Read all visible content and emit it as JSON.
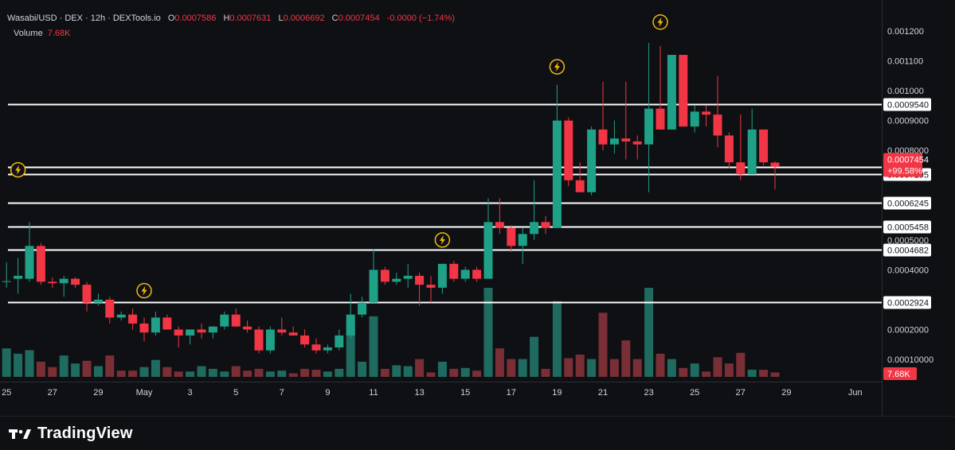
{
  "legend": {
    "symbol": "Wasabi/USD · DEX · 12h · DEXTools.io",
    "o_label": "O",
    "o_value": "0.0007586",
    "h_label": "H",
    "h_value": "0.0007631",
    "l_label": "L",
    "l_value": "0.0006692",
    "c_label": "C",
    "c_value": "0.0007454",
    "change": "-0.0000 (−1.74%)",
    "volume_label": "Volume",
    "volume_value": "7.68K"
  },
  "colors": {
    "background": "#0f1013",
    "up": "#1fa187",
    "down": "#f23645",
    "up_volume": "#1f6b60",
    "down_volume": "#7a2e36",
    "level_line": "#ffffff",
    "label_bg_price": "#f23645"
  },
  "branding": {
    "logo_text": "TradingView",
    "logo_icon": "tradingview-logo-icon"
  },
  "chart_data": {
    "type": "candlestick",
    "interval": "12h",
    "y_axis_ticks": [
      "0.001200",
      "0.001100",
      "0.001000",
      "0.0009000",
      "0.0008000",
      "0.0005000",
      "0.0004000",
      "0.0002000",
      "0.00010000"
    ],
    "y_tick_values": [
      0.0012,
      0.0011,
      0.001,
      0.0009,
      0.0008,
      0.0005,
      0.0004,
      0.0002,
      0.0001
    ],
    "y_range": [
      0.0,
      0.00124
    ],
    "x_axis_ticks": [
      "25",
      "27",
      "29",
      "May",
      "3",
      "5",
      "7",
      "9",
      "11",
      "13",
      "15",
      "17",
      "19",
      "21",
      "23",
      "25",
      "27",
      "29",
      "Jun"
    ],
    "x_tick_days": [
      -6,
      -4,
      -2,
      0,
      2,
      4,
      6,
      8,
      10,
      12,
      14,
      16,
      18,
      20,
      22,
      24,
      26,
      28,
      31
    ],
    "horizontal_levels": [
      {
        "label": "0.0009540",
        "value": 0.000954
      },
      {
        "label": "0.0007195",
        "value": 0.0007195
      },
      {
        "label": "0.0006245",
        "value": 0.0006245
      },
      {
        "label": "0.0005458",
        "value": 0.0005458
      },
      {
        "label": "0.0004682",
        "value": 0.0004682
      },
      {
        "label": "0.0002924",
        "value": 0.0002924
      }
    ],
    "current_price": {
      "label": "0.0007454",
      "change_label": "+99.58%",
      "value": 0.0007454
    },
    "volume_label": "7.68K",
    "candles": [
      {
        "t": -6.5,
        "o": 0.000362,
        "h": 0.00052,
        "l": 0.000362,
        "c": 0.000362
      },
      {
        "t": -6.0,
        "o": 0.000362,
        "h": 0.000425,
        "l": 0.00034,
        "c": 0.000362
      },
      {
        "t": -5.5,
        "o": 0.00037,
        "h": 0.00044,
        "l": 0.00032,
        "c": 0.00038
      },
      {
        "t": -5.0,
        "o": 0.00037,
        "h": 0.00056,
        "l": 0.00036,
        "c": 0.00048
      },
      {
        "t": -4.5,
        "o": 0.00048,
        "h": 0.00049,
        "l": 0.00035,
        "c": 0.00036
      },
      {
        "t": -4.0,
        "o": 0.00036,
        "h": 0.000375,
        "l": 0.00034,
        "c": 0.000355
      },
      {
        "t": -3.5,
        "o": 0.000355,
        "h": 0.00038,
        "l": 0.00031,
        "c": 0.00037
      },
      {
        "t": -3.0,
        "o": 0.00037,
        "h": 0.000375,
        "l": 0.00034,
        "c": 0.00035
      },
      {
        "t": -2.5,
        "o": 0.00035,
        "h": 0.00036,
        "l": 0.00026,
        "c": 0.00029
      },
      {
        "t": -2.0,
        "o": 0.00029,
        "h": 0.00032,
        "l": 0.00028,
        "c": 0.0003
      },
      {
        "t": -1.5,
        "o": 0.0003,
        "h": 0.00031,
        "l": 0.00022,
        "c": 0.00024
      },
      {
        "t": -1.0,
        "o": 0.00024,
        "h": 0.00026,
        "l": 0.00023,
        "c": 0.00025
      },
      {
        "t": -0.5,
        "o": 0.00025,
        "h": 0.00027,
        "l": 0.0002,
        "c": 0.00022
      },
      {
        "t": 0.0,
        "o": 0.00022,
        "h": 0.00024,
        "l": 0.00016,
        "c": 0.00019
      },
      {
        "t": 0.5,
        "o": 0.00019,
        "h": 0.00026,
        "l": 0.00018,
        "c": 0.00024
      },
      {
        "t": 1.0,
        "o": 0.00024,
        "h": 0.00025,
        "l": 0.0002,
        "c": 0.0002
      },
      {
        "t": 1.5,
        "o": 0.0002,
        "h": 0.00021,
        "l": 0.00014,
        "c": 0.00018
      },
      {
        "t": 2.0,
        "o": 0.00018,
        "h": 0.0002,
        "l": 0.00015,
        "c": 0.0002
      },
      {
        "t": 2.5,
        "o": 0.0002,
        "h": 0.00022,
        "l": 0.00017,
        "c": 0.00019
      },
      {
        "t": 3.0,
        "o": 0.00019,
        "h": 0.00021,
        "l": 0.00017,
        "c": 0.00021
      },
      {
        "t": 3.5,
        "o": 0.00021,
        "h": 0.00026,
        "l": 0.0002,
        "c": 0.00025
      },
      {
        "t": 4.0,
        "o": 0.00025,
        "h": 0.00027,
        "l": 0.00021,
        "c": 0.00021
      },
      {
        "t": 4.5,
        "o": 0.00021,
        "h": 0.00023,
        "l": 0.00019,
        "c": 0.0002
      },
      {
        "t": 5.0,
        "o": 0.0002,
        "h": 0.00021,
        "l": 0.00012,
        "c": 0.00013
      },
      {
        "t": 5.5,
        "o": 0.00013,
        "h": 0.00021,
        "l": 0.00012,
        "c": 0.0002
      },
      {
        "t": 6.0,
        "o": 0.0002,
        "h": 0.00024,
        "l": 0.00018,
        "c": 0.00019
      },
      {
        "t": 6.5,
        "o": 0.00019,
        "h": 0.00021,
        "l": 0.00018,
        "c": 0.00018
      },
      {
        "t": 7.0,
        "o": 0.00018,
        "h": 0.0002,
        "l": 0.00014,
        "c": 0.00015
      },
      {
        "t": 7.5,
        "o": 0.00015,
        "h": 0.00017,
        "l": 0.00012,
        "c": 0.00013
      },
      {
        "t": 8.0,
        "o": 0.00013,
        "h": 0.00015,
        "l": 0.00012,
        "c": 0.00014
      },
      {
        "t": 8.5,
        "o": 0.00014,
        "h": 0.0002,
        "l": 0.00013,
        "c": 0.00018
      },
      {
        "t": 9.0,
        "o": 0.00018,
        "h": 0.00032,
        "l": 0.00017,
        "c": 0.00025
      },
      {
        "t": 9.5,
        "o": 0.00025,
        "h": 0.00031,
        "l": 0.00024,
        "c": 0.00029
      },
      {
        "t": 10.0,
        "o": 0.00029,
        "h": 0.00047,
        "l": 0.00029,
        "c": 0.0004
      },
      {
        "t": 10.5,
        "o": 0.0004,
        "h": 0.00041,
        "l": 0.00035,
        "c": 0.00036
      },
      {
        "t": 11.0,
        "o": 0.00036,
        "h": 0.00039,
        "l": 0.00035,
        "c": 0.00037
      },
      {
        "t": 11.5,
        "o": 0.00037,
        "h": 0.00042,
        "l": 0.00034,
        "c": 0.00038
      },
      {
        "t": 12.0,
        "o": 0.00038,
        "h": 0.00039,
        "l": 0.00028,
        "c": 0.00035
      },
      {
        "t": 12.5,
        "o": 0.00035,
        "h": 0.00038,
        "l": 0.00029,
        "c": 0.00034
      },
      {
        "t": 13.0,
        "o": 0.00034,
        "h": 0.00042,
        "l": 0.00032,
        "c": 0.00042
      },
      {
        "t": 13.5,
        "o": 0.00042,
        "h": 0.00043,
        "l": 0.00036,
        "c": 0.00037
      },
      {
        "t": 14.0,
        "o": 0.00037,
        "h": 0.00041,
        "l": 0.00036,
        "c": 0.0004
      },
      {
        "t": 14.5,
        "o": 0.0004,
        "h": 0.00041,
        "l": 0.00036,
        "c": 0.00037
      },
      {
        "t": 15.0,
        "o": 0.00037,
        "h": 0.00064,
        "l": 0.00037,
        "c": 0.00056
      },
      {
        "t": 15.5,
        "o": 0.00056,
        "h": 0.00064,
        "l": 0.00052,
        "c": 0.00054
      },
      {
        "t": 16.0,
        "o": 0.00054,
        "h": 0.00055,
        "l": 0.00046,
        "c": 0.00048
      },
      {
        "t": 16.5,
        "o": 0.00048,
        "h": 0.00054,
        "l": 0.00042,
        "c": 0.00052
      },
      {
        "t": 17.0,
        "o": 0.00052,
        "h": 0.0007,
        "l": 0.0005,
        "c": 0.00056
      },
      {
        "t": 17.5,
        "o": 0.00056,
        "h": 0.00058,
        "l": 0.00052,
        "c": 0.00054
      },
      {
        "t": 18.0,
        "o": 0.00054,
        "h": 0.00102,
        "l": 0.00054,
        "c": 0.0009
      },
      {
        "t": 18.5,
        "o": 0.0009,
        "h": 0.00091,
        "l": 0.00068,
        "c": 0.0007
      },
      {
        "t": 19.0,
        "o": 0.0007,
        "h": 0.00076,
        "l": 0.00066,
        "c": 0.00066
      },
      {
        "t": 19.5,
        "o": 0.00066,
        "h": 0.00088,
        "l": 0.00065,
        "c": 0.00087
      },
      {
        "t": 20.0,
        "o": 0.00087,
        "h": 0.00103,
        "l": 0.0008,
        "c": 0.00082
      },
      {
        "t": 20.5,
        "o": 0.00082,
        "h": 0.0009,
        "l": 0.00079,
        "c": 0.00084
      },
      {
        "t": 21.0,
        "o": 0.00084,
        "h": 0.00103,
        "l": 0.00077,
        "c": 0.00083
      },
      {
        "t": 21.5,
        "o": 0.00083,
        "h": 0.00085,
        "l": 0.00077,
        "c": 0.00082
      },
      {
        "t": 22.0,
        "o": 0.00082,
        "h": 0.00116,
        "l": 0.00066,
        "c": 0.00094
      },
      {
        "t": 22.5,
        "o": 0.00094,
        "h": 0.00115,
        "l": 0.00087,
        "c": 0.00087
      },
      {
        "t": 23.0,
        "o": 0.00087,
        "h": 0.00112,
        "l": 0.00087,
        "c": 0.00112
      },
      {
        "t": 23.5,
        "o": 0.00112,
        "h": 0.00112,
        "l": 0.00088,
        "c": 0.00088
      },
      {
        "t": 24.0,
        "o": 0.00088,
        "h": 0.00095,
        "l": 0.00086,
        "c": 0.00093
      },
      {
        "t": 24.5,
        "o": 0.00093,
        "h": 0.00095,
        "l": 0.00088,
        "c": 0.00092
      },
      {
        "t": 25.0,
        "o": 0.00092,
        "h": 0.00105,
        "l": 0.00081,
        "c": 0.00085
      },
      {
        "t": 25.5,
        "o": 0.00085,
        "h": 0.00086,
        "l": 0.00074,
        "c": 0.00076
      },
      {
        "t": 26.0,
        "o": 0.00076,
        "h": 0.00092,
        "l": 0.0007,
        "c": 0.00072
      },
      {
        "t": 26.5,
        "o": 0.00072,
        "h": 0.00094,
        "l": 0.00072,
        "c": 0.00087
      },
      {
        "t": 27.0,
        "o": 0.00087,
        "h": 0.00087,
        "l": 0.00075,
        "c": 0.00076
      },
      {
        "t": 27.5,
        "o": 0.000759,
        "h": 0.000763,
        "l": 0.000669,
        "c": 0.000745
      }
    ],
    "volume_bars": [
      {
        "t": -6.5,
        "v": 0.71,
        "up": true
      },
      {
        "t": -6.0,
        "v": 0.32,
        "up": true
      },
      {
        "t": -5.5,
        "v": 0.26,
        "up": true
      },
      {
        "t": -5.0,
        "v": 0.3,
        "up": true
      },
      {
        "t": -4.5,
        "v": 0.17,
        "up": false
      },
      {
        "t": -4.0,
        "v": 0.11,
        "up": false
      },
      {
        "t": -3.5,
        "v": 0.24,
        "up": true
      },
      {
        "t": -3.0,
        "v": 0.15,
        "up": true
      },
      {
        "t": -2.5,
        "v": 0.18,
        "up": false
      },
      {
        "t": -2.0,
        "v": 0.12,
        "up": true
      },
      {
        "t": -1.5,
        "v": 0.24,
        "up": false
      },
      {
        "t": -1.0,
        "v": 0.07,
        "up": false
      },
      {
        "t": -0.5,
        "v": 0.07,
        "up": false
      },
      {
        "t": 0.0,
        "v": 0.11,
        "up": true
      },
      {
        "t": 0.5,
        "v": 0.19,
        "up": true
      },
      {
        "t": 1.0,
        "v": 0.11,
        "up": false
      },
      {
        "t": 1.5,
        "v": 0.06,
        "up": false
      },
      {
        "t": 2.0,
        "v": 0.06,
        "up": true
      },
      {
        "t": 2.5,
        "v": 0.12,
        "up": true
      },
      {
        "t": 3.0,
        "v": 0.09,
        "up": true
      },
      {
        "t": 3.5,
        "v": 0.06,
        "up": true
      },
      {
        "t": 4.0,
        "v": 0.12,
        "up": false
      },
      {
        "t": 4.5,
        "v": 0.07,
        "up": false
      },
      {
        "t": 5.0,
        "v": 0.09,
        "up": false
      },
      {
        "t": 5.5,
        "v": 0.06,
        "up": true
      },
      {
        "t": 6.0,
        "v": 0.07,
        "up": true
      },
      {
        "t": 6.5,
        "v": 0.04,
        "up": false
      },
      {
        "t": 7.0,
        "v": 0.09,
        "up": false
      },
      {
        "t": 7.5,
        "v": 0.08,
        "up": false
      },
      {
        "t": 8.0,
        "v": 0.06,
        "up": true
      },
      {
        "t": 8.5,
        "v": 0.09,
        "up": true
      },
      {
        "t": 9.0,
        "v": 0.59,
        "up": true
      },
      {
        "t": 9.5,
        "v": 0.17,
        "up": true
      },
      {
        "t": 10.0,
        "v": 0.68,
        "up": true
      },
      {
        "t": 10.5,
        "v": 0.09,
        "up": false
      },
      {
        "t": 11.0,
        "v": 0.13,
        "up": true
      },
      {
        "t": 11.5,
        "v": 0.12,
        "up": true
      },
      {
        "t": 12.0,
        "v": 0.2,
        "up": false
      },
      {
        "t": 12.5,
        "v": 0.05,
        "up": false
      },
      {
        "t": 13.0,
        "v": 0.17,
        "up": true
      },
      {
        "t": 13.5,
        "v": 0.09,
        "up": false
      },
      {
        "t": 14.0,
        "v": 0.1,
        "up": true
      },
      {
        "t": 14.5,
        "v": 0.07,
        "up": false
      },
      {
        "t": 15.0,
        "v": 1.0,
        "up": true
      },
      {
        "t": 15.5,
        "v": 0.32,
        "up": false
      },
      {
        "t": 16.0,
        "v": 0.2,
        "up": false
      },
      {
        "t": 16.5,
        "v": 0.2,
        "up": true
      },
      {
        "t": 17.0,
        "v": 0.45,
        "up": true
      },
      {
        "t": 17.5,
        "v": 0.09,
        "up": false
      },
      {
        "t": 18.0,
        "v": 0.85,
        "up": true
      },
      {
        "t": 18.5,
        "v": 0.21,
        "up": false
      },
      {
        "t": 19.0,
        "v": 0.25,
        "up": false
      },
      {
        "t": 19.5,
        "v": 0.2,
        "up": true
      },
      {
        "t": 20.0,
        "v": 0.72,
        "up": false
      },
      {
        "t": 20.5,
        "v": 0.2,
        "up": false
      },
      {
        "t": 21.0,
        "v": 0.41,
        "up": false
      },
      {
        "t": 21.5,
        "v": 0.2,
        "up": false
      },
      {
        "t": 22.0,
        "v": 1.0,
        "up": true
      },
      {
        "t": 22.5,
        "v": 0.26,
        "up": false
      },
      {
        "t": 23.0,
        "v": 0.2,
        "up": true
      },
      {
        "t": 23.5,
        "v": 0.1,
        "up": false
      },
      {
        "t": 24.0,
        "v": 0.15,
        "up": true
      },
      {
        "t": 24.5,
        "v": 0.06,
        "up": false
      },
      {
        "t": 25.0,
        "v": 0.22,
        "up": false
      },
      {
        "t": 25.5,
        "v": 0.15,
        "up": false
      },
      {
        "t": 26.0,
        "v": 0.27,
        "up": false
      },
      {
        "t": 26.5,
        "v": 0.08,
        "up": true
      },
      {
        "t": 27.0,
        "v": 0.08,
        "up": false
      },
      {
        "t": 27.5,
        "v": 0.05,
        "up": false
      }
    ],
    "event_markers": [
      {
        "t": -5.5,
        "price": 0.000735,
        "icon": "lightning-icon"
      },
      {
        "t": 0.0,
        "price": 0.00033,
        "icon": "lightning-icon"
      },
      {
        "t": 13.0,
        "price": 0.0005,
        "icon": "lightning-icon"
      },
      {
        "t": 18.0,
        "price": 0.00108,
        "icon": "lightning-icon"
      },
      {
        "t": 22.5,
        "price": 0.00123,
        "icon": "lightning-icon"
      }
    ]
  }
}
